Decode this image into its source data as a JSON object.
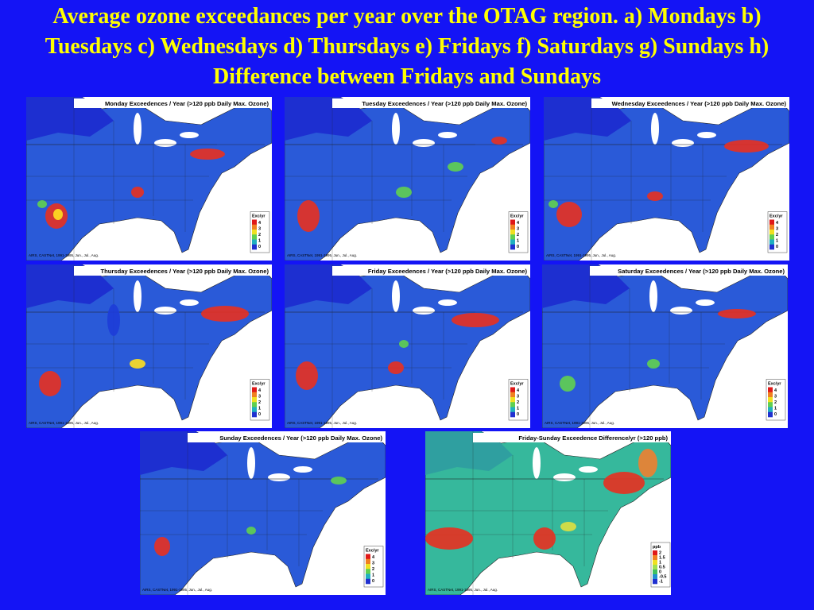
{
  "title": "Average ozone exceedances per year over the OTAG region. a) Mondays b) Tuesdays c) Wednesdays d) Thursdays e) Fridays f) Saturdays g) Sundays h) Difference between Fridays and Sundays",
  "panels": [
    {
      "title": "Monday Exceedences / Year (>120 ppb Daily Max. Ozone)",
      "legend_title": "Exc/yr",
      "legend_labels": [
        "4",
        "3",
        "2",
        "1",
        "0"
      ],
      "source": "AIRS, CASTNet, 1991-1995, Jun., Jul., Aug."
    },
    {
      "title": "Tuesday Exceedences / Year (>120 ppb Daily Max. Ozone)",
      "legend_title": "Exc/yr",
      "legend_labels": [
        "4",
        "3",
        "2",
        "1",
        "0"
      ],
      "source": "AIRS, CASTNet, 1991-1995, Jun., Jul., Aug."
    },
    {
      "title": "Wednesday Exceedences / Year (>120 ppb Daily Max. Ozone)",
      "legend_title": "Exc/yr",
      "legend_labels": [
        "4",
        "3",
        "2",
        "1",
        "0"
      ],
      "source": "AIRS, CASTNet, 1991-1995, Jun., Jul., Aug."
    },
    {
      "title": "Thursday Exceedences / Year (>120 ppb Daily Max. Ozone)",
      "legend_title": "Exc/yr",
      "legend_labels": [
        "4",
        "3",
        "2",
        "1",
        "0"
      ],
      "source": "AIRS, CASTNet, 1991-1995, Jun., Jul., Aug."
    },
    {
      "title": "Friday Exceedences / Year (>120 ppb Daily Max. Ozone)",
      "legend_title": "Exc/yr",
      "legend_labels": [
        "4",
        "3",
        "2",
        "1",
        "0"
      ],
      "source": "AIRS, CASTNet, 1991-1995, Jun., Jul., Aug."
    },
    {
      "title": "Saturday Exceedences / Year (>120 ppb Daily Max. Ozone)",
      "legend_title": "Exc/yr",
      "legend_labels": [
        "4",
        "3",
        "2",
        "1",
        "0"
      ],
      "source": "AIRS, CASTNet, 1991-1995, Jun., Jul., Aug."
    },
    {
      "title": "Sunday Exceedences / Year (>120 ppb Daily Max. Ozone)",
      "legend_title": "Exc/yr",
      "legend_labels": [
        "4",
        "3",
        "2",
        "1",
        "0"
      ],
      "source": "AIRS, CASTNet, 1991-1995, Jun., Jul., Aug."
    },
    {
      "title": "Friday-Sunday Exceedence Difference/yr (>120 ppb)",
      "legend_title": "ppb",
      "legend_labels": [
        "2",
        "1.5",
        "1",
        "0.5",
        "0",
        "-0.5",
        "-1"
      ],
      "source": "AIRS, CASTNet, 1991-1995, Jun., Jul., Aug."
    }
  ]
}
